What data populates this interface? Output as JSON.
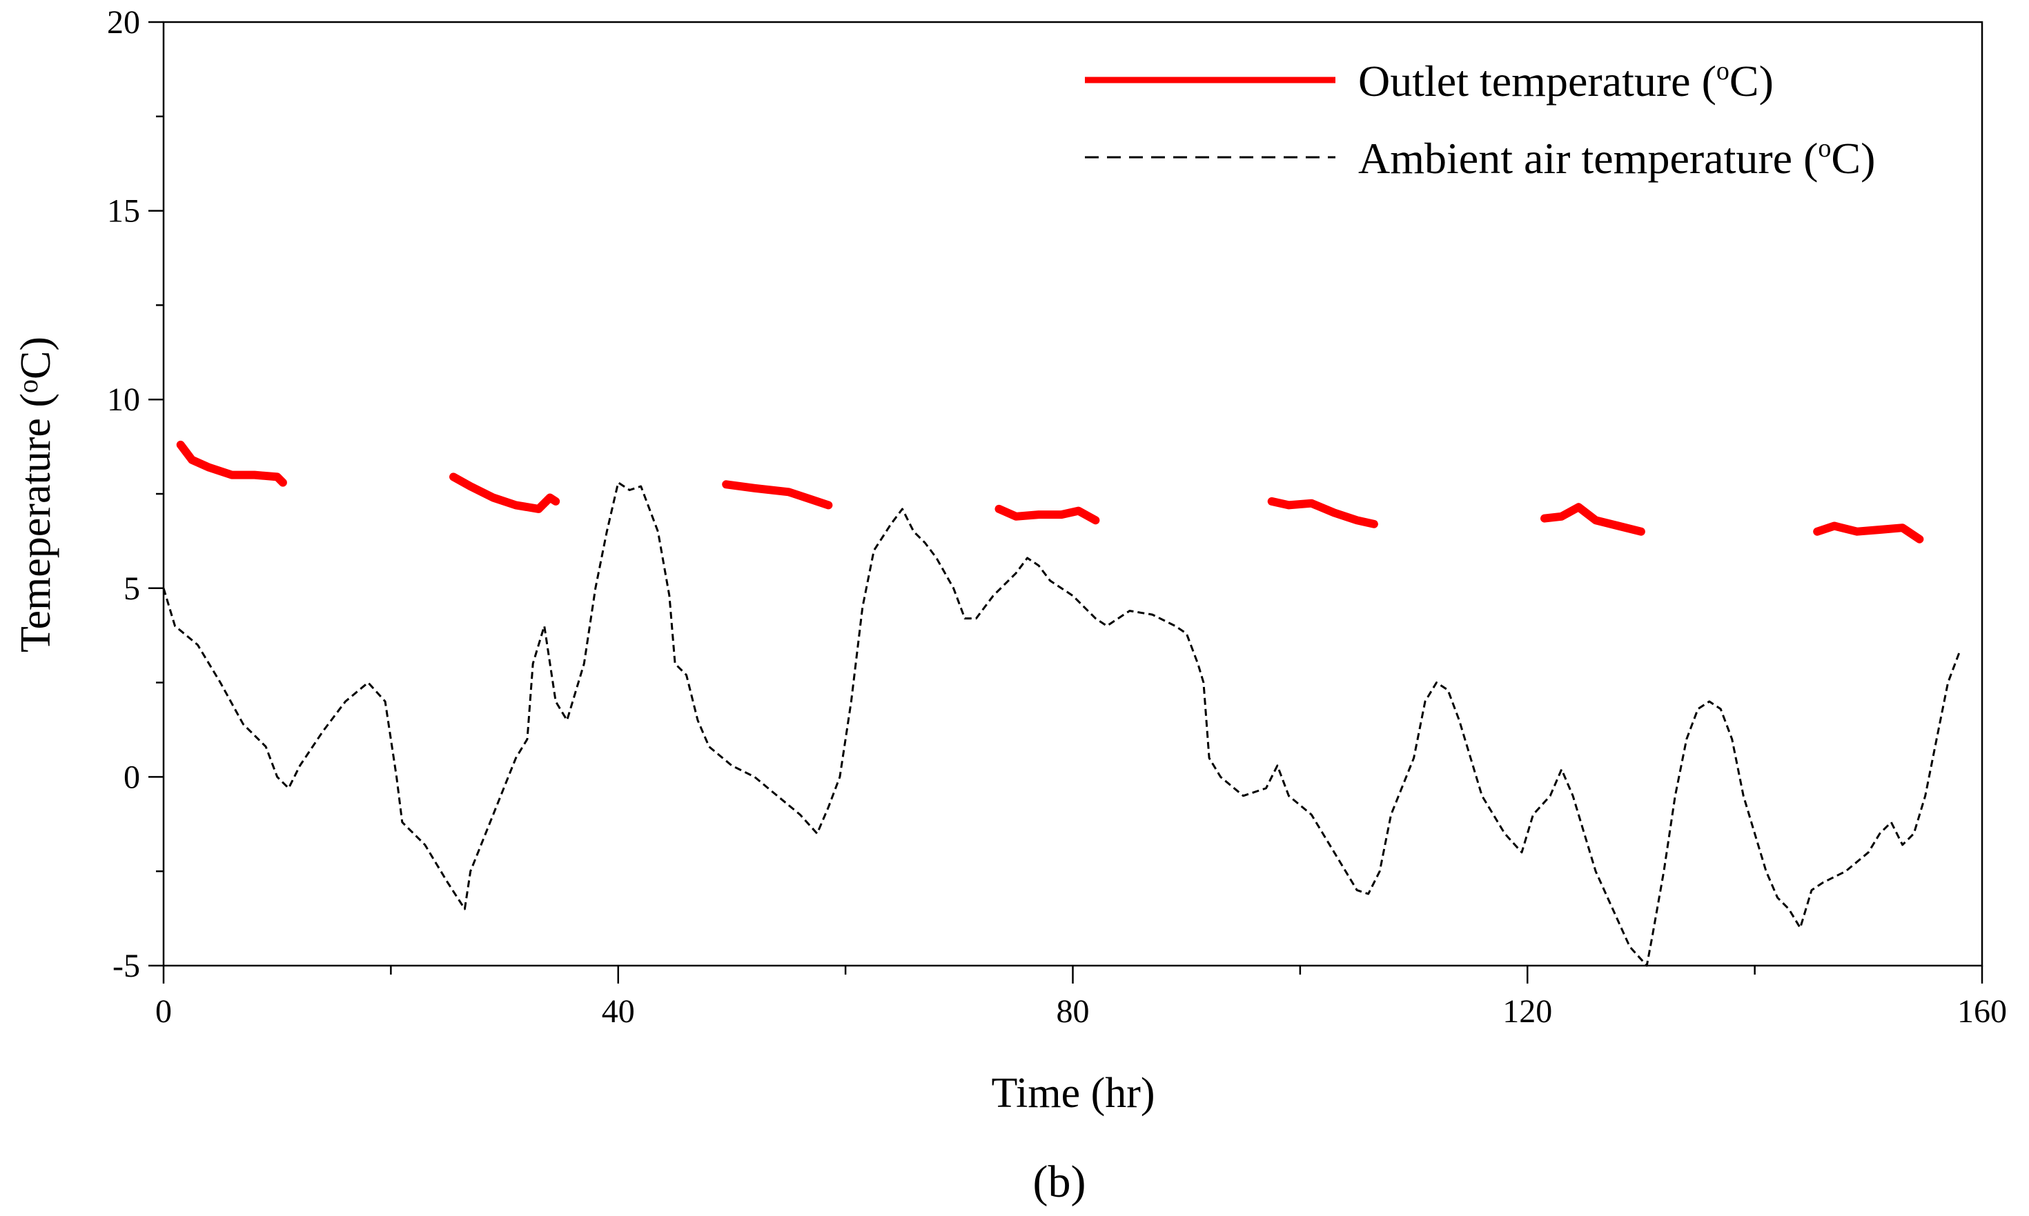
{
  "chart_data": {
    "type": "line",
    "title": "",
    "panel_label": "(b)",
    "xlabel": "Time (hr)",
    "ylabel": "Temeperature (oC)",
    "xlim": [
      0,
      160
    ],
    "ylim": [
      -5,
      20
    ],
    "x_ticks": [
      0,
      40,
      80,
      120,
      160
    ],
    "x_tick_labels": [
      "0",
      "40",
      "80",
      "120",
      "160"
    ],
    "x_minor_ticks": [
      20,
      60,
      100,
      140
    ],
    "y_ticks": [
      -5,
      0,
      5,
      10,
      15,
      20
    ],
    "y_tick_labels": [
      "-5",
      "0",
      "5",
      "10",
      "15",
      "20"
    ],
    "grid": false,
    "legend_position": "top-right",
    "series": [
      {
        "name": "Outlet temperature (oC)",
        "legend_label": "Outlet temperature (",
        "legend_unit": "C)",
        "color": "#ff0000",
        "style": "solid",
        "segments": [
          [
            [
              1.5,
              8.8
            ],
            [
              2.5,
              8.4
            ],
            [
              4,
              8.2
            ],
            [
              6,
              8.0
            ],
            [
              8,
              8.0
            ],
            [
              10,
              7.95
            ],
            [
              10.5,
              7.8
            ]
          ],
          [
            [
              25.5,
              7.95
            ],
            [
              27,
              7.7
            ],
            [
              29,
              7.4
            ],
            [
              31,
              7.2
            ],
            [
              33,
              7.1
            ],
            [
              34,
              7.4
            ],
            [
              34.5,
              7.3
            ]
          ],
          [
            [
              49.5,
              7.75
            ],
            [
              52,
              7.65
            ],
            [
              55,
              7.55
            ],
            [
              57,
              7.35
            ],
            [
              58.5,
              7.2
            ]
          ],
          [
            [
              73.5,
              7.1
            ],
            [
              75,
              6.9
            ],
            [
              77,
              6.95
            ],
            [
              79,
              6.95
            ],
            [
              80.5,
              7.05
            ],
            [
              82,
              6.8
            ]
          ],
          [
            [
              97.5,
              7.3
            ],
            [
              99,
              7.2
            ],
            [
              101,
              7.25
            ],
            [
              103,
              7.0
            ],
            [
              105,
              6.8
            ],
            [
              106.5,
              6.7
            ]
          ],
          [
            [
              121.5,
              6.85
            ],
            [
              123,
              6.9
            ],
            [
              124.5,
              7.15
            ],
            [
              126,
              6.8
            ],
            [
              128,
              6.65
            ],
            [
              130,
              6.5
            ]
          ],
          [
            [
              145.5,
              6.5
            ],
            [
              147,
              6.65
            ],
            [
              149,
              6.5
            ],
            [
              151,
              6.55
            ],
            [
              153,
              6.6
            ],
            [
              154.5,
              6.3
            ]
          ]
        ]
      },
      {
        "name": "Ambient air temperature (oC)",
        "legend_label": "Ambient air temperature (",
        "legend_unit": "C)",
        "color": "#000000",
        "style": "dashed",
        "points": [
          [
            0,
            5.0
          ],
          [
            1,
            4.0
          ],
          [
            3,
            3.5
          ],
          [
            5,
            2.5
          ],
          [
            7,
            1.4
          ],
          [
            9,
            0.8
          ],
          [
            10,
            0.0
          ],
          [
            11,
            -0.3
          ],
          [
            12,
            0.3
          ],
          [
            14,
            1.2
          ],
          [
            16,
            2.0
          ],
          [
            18,
            2.5
          ],
          [
            19.5,
            2.0
          ],
          [
            20.5,
            0.0
          ],
          [
            21,
            -1.2
          ],
          [
            23,
            -1.8
          ],
          [
            25,
            -2.8
          ],
          [
            26.5,
            -3.5
          ],
          [
            27,
            -2.5
          ],
          [
            29,
            -1.0
          ],
          [
            31,
            0.5
          ],
          [
            32,
            1.0
          ],
          [
            32.5,
            3.0
          ],
          [
            33.5,
            4.0
          ],
          [
            34.5,
            2.0
          ],
          [
            35.5,
            1.5
          ],
          [
            37,
            3.0
          ],
          [
            38,
            5.0
          ],
          [
            39,
            6.5
          ],
          [
            40,
            7.8
          ],
          [
            41,
            7.6
          ],
          [
            42,
            7.7
          ],
          [
            43.5,
            6.5
          ],
          [
            44.5,
            4.8
          ],
          [
            45,
            3.0
          ],
          [
            46,
            2.7
          ],
          [
            47,
            1.5
          ],
          [
            48,
            0.8
          ],
          [
            50,
            0.3
          ],
          [
            52,
            0.0
          ],
          [
            54,
            -0.5
          ],
          [
            56,
            -1.0
          ],
          [
            57.5,
            -1.5
          ],
          [
            58.5,
            -0.8
          ],
          [
            59.5,
            0.0
          ],
          [
            60.5,
            2.0
          ],
          [
            61.5,
            4.5
          ],
          [
            62.5,
            6.0
          ],
          [
            64,
            6.7
          ],
          [
            65,
            7.1
          ],
          [
            66,
            6.5
          ],
          [
            67,
            6.2
          ],
          [
            68,
            5.8
          ],
          [
            69.5,
            5.0
          ],
          [
            70.5,
            4.2
          ],
          [
            71.5,
            4.2
          ],
          [
            73,
            4.8
          ],
          [
            75,
            5.4
          ],
          [
            76,
            5.8
          ],
          [
            77,
            5.6
          ],
          [
            78,
            5.2
          ],
          [
            80,
            4.8
          ],
          [
            82,
            4.2
          ],
          [
            83,
            4.0
          ],
          [
            85,
            4.4
          ],
          [
            87,
            4.3
          ],
          [
            89,
            4.0
          ],
          [
            90,
            3.8
          ],
          [
            91,
            3.0
          ],
          [
            91.5,
            2.5
          ],
          [
            92,
            0.5
          ],
          [
            93,
            0.0
          ],
          [
            95,
            -0.5
          ],
          [
            97,
            -0.3
          ],
          [
            98,
            0.3
          ],
          [
            99,
            -0.5
          ],
          [
            101,
            -1.0
          ],
          [
            102,
            -1.5
          ],
          [
            104,
            -2.5
          ],
          [
            105,
            -3.0
          ],
          [
            106,
            -3.1
          ],
          [
            107,
            -2.5
          ],
          [
            108,
            -1.0
          ],
          [
            110,
            0.5
          ],
          [
            111,
            2.0
          ],
          [
            112,
            2.5
          ],
          [
            113,
            2.3
          ],
          [
            114,
            1.5
          ],
          [
            115,
            0.5
          ],
          [
            116,
            -0.5
          ],
          [
            118,
            -1.5
          ],
          [
            119.5,
            -2.0
          ],
          [
            120.5,
            -1.0
          ],
          [
            122,
            -0.5
          ],
          [
            123,
            0.2
          ],
          [
            124,
            -0.5
          ],
          [
            125,
            -1.5
          ],
          [
            126,
            -2.5
          ],
          [
            127.5,
            -3.5
          ],
          [
            129,
            -4.5
          ],
          [
            130.5,
            -5.0
          ],
          [
            131,
            -4.2
          ],
          [
            132,
            -2.5
          ],
          [
            133,
            -0.5
          ],
          [
            134,
            1.0
          ],
          [
            135,
            1.8
          ],
          [
            136,
            2.0
          ],
          [
            137,
            1.8
          ],
          [
            138,
            1.0
          ],
          [
            139,
            -0.5
          ],
          [
            140,
            -1.5
          ],
          [
            141,
            -2.5
          ],
          [
            142,
            -3.2
          ],
          [
            143,
            -3.5
          ],
          [
            144,
            -4.0
          ],
          [
            145,
            -3.0
          ],
          [
            146,
            -2.8
          ],
          [
            148,
            -2.5
          ],
          [
            150,
            -2.0
          ],
          [
            151,
            -1.5
          ],
          [
            152,
            -1.2
          ],
          [
            153,
            -1.8
          ],
          [
            154,
            -1.5
          ],
          [
            155,
            -0.5
          ],
          [
            156,
            1.0
          ],
          [
            157,
            2.5
          ],
          [
            158,
            3.3
          ]
        ]
      }
    ]
  }
}
